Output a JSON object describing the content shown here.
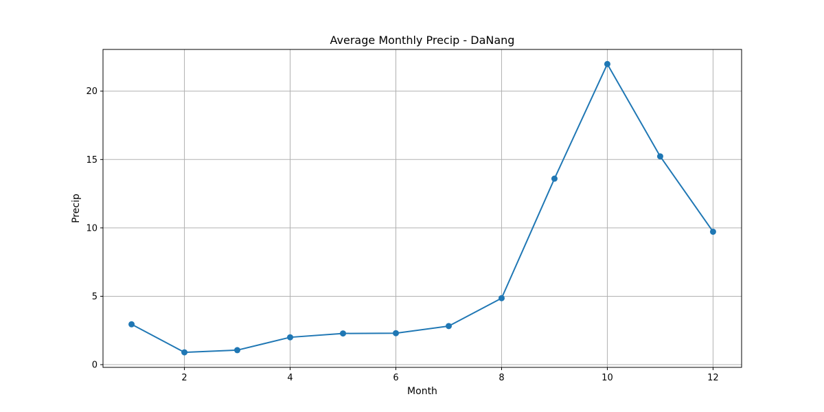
{
  "chart_data": {
    "type": "line",
    "title": "Average Monthly Precip - DaNang",
    "xlabel": "Month",
    "ylabel": "Precip",
    "x": [
      1,
      2,
      3,
      4,
      5,
      6,
      7,
      8,
      9,
      10,
      11,
      12
    ],
    "series": [
      {
        "values": [
          2.95,
          0.9,
          1.06,
          2.0,
          2.28,
          2.3,
          2.82,
          4.86,
          13.6,
          21.98,
          15.23,
          9.72
        ],
        "color": "#1f77b4",
        "marker": "circle"
      }
    ],
    "xlim": [
      0.46,
      12.54
    ],
    "ylim": [
      -0.2,
      23.05
    ],
    "xticks": [
      2,
      4,
      6,
      8,
      10,
      12
    ],
    "yticks": [
      0,
      5,
      10,
      15,
      20
    ],
    "grid": true,
    "grid_color": "#b0b0b0",
    "legend": "none"
  }
}
